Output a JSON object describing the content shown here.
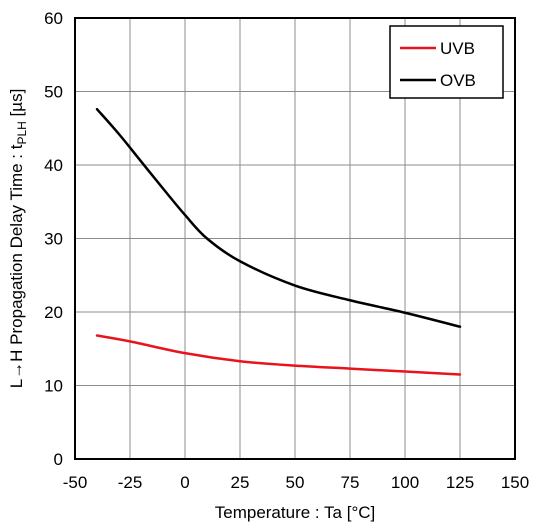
{
  "chart_data": {
    "type": "line",
    "xlabel": "Temperature : Ta [°C]",
    "ylabel": {
      "main": "L→H Propagation Delay Time : t",
      "subscript": "PLH",
      "unit": " [µs]"
    },
    "xlim": [
      -50,
      150
    ],
    "ylim": [
      0,
      60
    ],
    "xticks": [
      -50,
      -25,
      0,
      25,
      50,
      75,
      100,
      125,
      150
    ],
    "yticks": [
      0,
      10,
      20,
      30,
      40,
      50,
      60
    ],
    "grid": true,
    "legend_position": "top-right",
    "series": [
      {
        "name": "UVB",
        "color": "#e8141b",
        "x": [
          -40,
          -25,
          0,
          25,
          50,
          75,
          100,
          125
        ],
        "y": [
          16.8,
          16.0,
          14.4,
          13.3,
          12.7,
          12.3,
          11.9,
          11.5
        ]
      },
      {
        "name": "OVB",
        "color": "#000000",
        "x": [
          -40,
          -30,
          -20,
          -10,
          0,
          10,
          25,
          50,
          75,
          100,
          125
        ],
        "y": [
          47.6,
          44.2,
          40.5,
          36.8,
          33.2,
          30.0,
          26.9,
          23.6,
          21.6,
          19.9,
          18.0
        ]
      }
    ]
  }
}
